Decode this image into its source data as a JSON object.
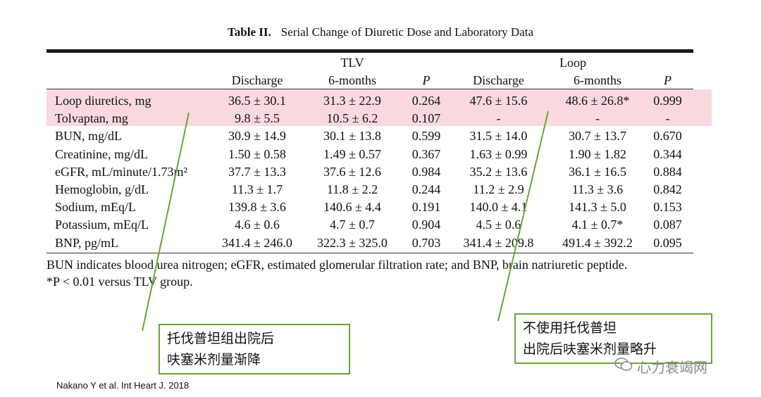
{
  "title": {
    "label": "Table II.",
    "text": "Serial Change of Diuretic Dose and Laboratory Data"
  },
  "groups": {
    "tlv": "TLV",
    "loop": "Loop"
  },
  "columns": [
    "Discharge",
    "6-months",
    "P",
    "Discharge",
    "6-months",
    "P"
  ],
  "rows": [
    {
      "label": "Loop diuretics, mg",
      "values": [
        "36.5 ± 30.1",
        "31.3 ± 22.9",
        "0.264",
        "47.6 ± 15.6",
        "48.6 ± 26.8*",
        "0.999"
      ]
    },
    {
      "label": "Tolvaptan, mg",
      "values": [
        "9.8 ± 5.5",
        "10.5 ± 6.2",
        "0.107",
        "-",
        "-",
        "-"
      ]
    },
    {
      "label": "BUN, mg/dL",
      "values": [
        "30.9 ± 14.9",
        "30.1 ± 13.8",
        "0.599",
        "31.5 ± 14.0",
        "30.7 ± 13.7",
        "0.670"
      ]
    },
    {
      "label": "Creatinine, mg/dL",
      "values": [
        "1.50 ± 0.58",
        "1.49 ± 0.57",
        "0.367",
        "1.63 ± 0.99",
        "1.90 ± 1.82",
        "0.344"
      ]
    },
    {
      "label": "eGFR, mL/minute/1.73m²",
      "values": [
        "37.7 ± 13.3",
        "37.6 ± 12.6",
        "0.984",
        "35.2 ± 13.6",
        "36.1 ± 16.5",
        "0.884"
      ]
    },
    {
      "label": "Hemoglobin, g/dL",
      "values": [
        "11.3 ± 1.7",
        "11.8 ± 2.2",
        "0.244",
        "11.2 ± 2.9",
        "11.3 ± 3.6",
        "0.842"
      ]
    },
    {
      "label": "Sodium, mEq/L",
      "values": [
        "139.8 ± 3.6",
        "140.6 ± 4.4",
        "0.191",
        "140.0 ± 4.1",
        "141.3 ± 5.0",
        "0.153"
      ]
    },
    {
      "label": "Potassium, mEq/L",
      "values": [
        "4.6 ± 0.6",
        "4.7 ± 0.7",
        "0.904",
        "4.5 ± 0.6",
        "4.1 ± 0.7*",
        "0.087"
      ]
    },
    {
      "label": "BNP, pg/mL",
      "values": [
        "341.4 ± 246.0",
        "322.3 ± 325.0",
        "0.703",
        "341.4 ± 209.8",
        "491.4 ± 392.2",
        "0.095"
      ]
    }
  ],
  "footnotes": [
    "BUN indicates blood urea nitrogen; eGFR, estimated glomerular filtration rate; and BNP, brain natriuretic peptide.",
    "*P < 0.01 versus TLV group."
  ],
  "callouts": {
    "left": [
      "托伐普坦组出院后",
      "呋塞米剂量渐降"
    ],
    "right": [
      "不使用托伐普坦",
      "出院后呋塞米剂量略升"
    ]
  },
  "citation": "Nakano Y et al. Int Heart J. 2018",
  "watermark": "心力衰竭网",
  "colors": {
    "highlight": "#f9d9de",
    "callout_border": "#6aa437",
    "arrow": "#6aa437"
  }
}
